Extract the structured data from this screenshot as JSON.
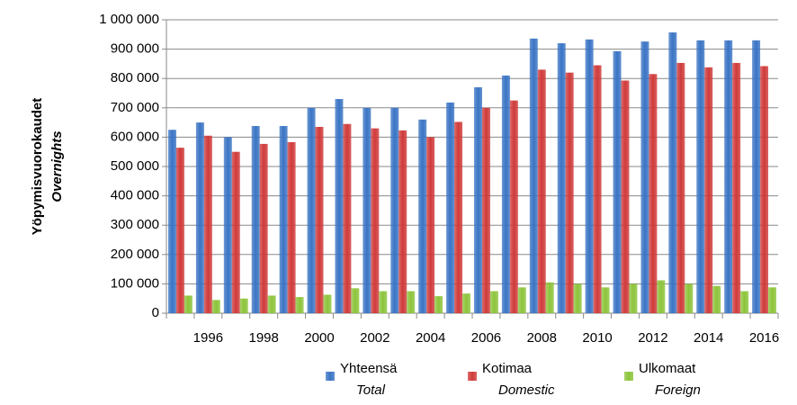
{
  "chart_data": {
    "type": "bar",
    "y_label": "Yöpymisvuorokaudet",
    "y_label_en": "Overnights",
    "categories": [
      null,
      "1996",
      null,
      "1998",
      null,
      "2000",
      null,
      "2002",
      null,
      "2004",
      null,
      "2006",
      null,
      "2008",
      null,
      "2010",
      null,
      "2012",
      null,
      "2014",
      null,
      "2016"
    ],
    "series": [
      {
        "name": "Yhteensä",
        "name_en": "Total",
        "color": "#3a74c4",
        "values": [
          625000,
          650000,
          600000,
          638000,
          638000,
          700000,
          730000,
          700000,
          700000,
          660000,
          718000,
          770000,
          810000,
          936000,
          920000,
          933000,
          893000,
          926000,
          957000,
          930000,
          930000,
          930000
        ]
      },
      {
        "name": "Kotimaa",
        "name_en": "Domestic",
        "color": "#d03a3a",
        "values": [
          564000,
          605000,
          550000,
          577000,
          583000,
          635000,
          645000,
          630000,
          623000,
          600000,
          652000,
          700000,
          725000,
          830000,
          820000,
          845000,
          793000,
          815000,
          853000,
          838000,
          853000,
          842000
        ]
      },
      {
        "name": "Ulkomaat",
        "name_en": "Foreign",
        "color": "#8cc43a",
        "values": [
          60000,
          45000,
          50000,
          60000,
          55000,
          63000,
          85000,
          75000,
          75000,
          58000,
          67000,
          75000,
          88000,
          105000,
          100000,
          88000,
          100000,
          112000,
          100000,
          93000,
          75000,
          88000
        ]
      }
    ],
    "ylim": [
      0,
      1000000
    ],
    "yticks": [
      0,
      {
        "value": 100000,
        "label": "100 000"
      },
      {
        "value": 200000,
        "label": "200 000"
      },
      {
        "value": 300000,
        "label": "300 000"
      },
      {
        "value": 400000,
        "label": "400 000"
      },
      {
        "value": 500000,
        "label": "500 000"
      },
      {
        "value": 600000,
        "label": "600 000"
      },
      {
        "value": 700000,
        "label": "700 000"
      },
      {
        "value": 800000,
        "label": "800 000"
      },
      {
        "value": 900000,
        "label": "900 000"
      },
      {
        "value": 1000000,
        "label": "1 000 000"
      }
    ],
    "grid": true,
    "legend": "bottom"
  }
}
